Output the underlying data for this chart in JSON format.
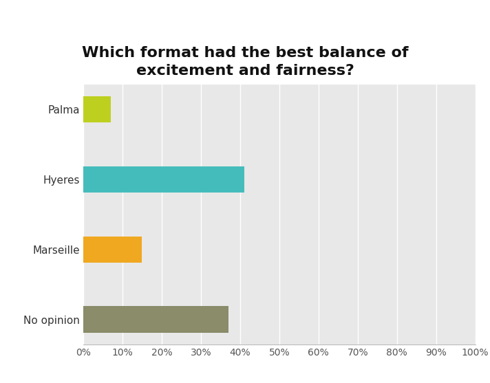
{
  "title": "Which format had the best balance of\nexcitement and fairness?",
  "categories": [
    "No opinion",
    "Marseille",
    "Hyeres",
    "Palma"
  ],
  "values": [
    37,
    15,
    41,
    7
  ],
  "bar_colors": [
    "#8a8c6a",
    "#f0a820",
    "#45bcbc",
    "#bdd020"
  ],
  "background_color": "#ffffff",
  "plot_background": "#e8e8e8",
  "title_fontsize": 16,
  "tick_fontsize": 10,
  "label_fontsize": 11,
  "xlim": [
    0,
    100
  ],
  "xtick_values": [
    0,
    10,
    20,
    30,
    40,
    50,
    60,
    70,
    80,
    90,
    100
  ]
}
